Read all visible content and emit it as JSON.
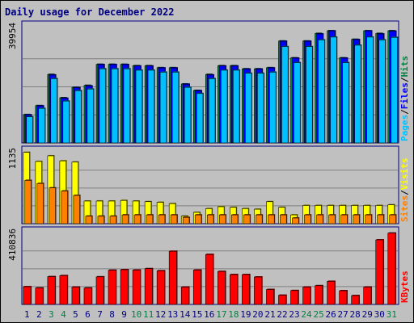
{
  "chart_data": {
    "type": "bar",
    "title": "Daily usage for December 2022",
    "days": [
      "1",
      "2",
      "3",
      "4",
      "5",
      "6",
      "7",
      "8",
      "9",
      "10",
      "11",
      "12",
      "13",
      "14",
      "15",
      "16",
      "17",
      "18",
      "19",
      "20",
      "21",
      "22",
      "23",
      "24",
      "25",
      "26",
      "27",
      "28",
      "29",
      "30",
      "31"
    ],
    "weekend_days": [
      3,
      4,
      10,
      11,
      17,
      18,
      24,
      25,
      31
    ],
    "panels": [
      {
        "id": "hits_files_pages",
        "ymax_label": "39954",
        "ymax": 39954,
        "legend": [
          "Pages",
          "/",
          "Files",
          "/",
          "Hits"
        ],
        "legend_colors": [
          "#00c0ff",
          "#000000",
          "#0000ff",
          "#000000",
          "#008040"
        ],
        "series": [
          {
            "name": "Hits",
            "color": "#008040",
            "values": [
              10100,
              13300,
              24400,
              16100,
              19800,
              20500,
              28000,
              28000,
              28000,
              27500,
              27500,
              26800,
              26800,
              21000,
              18700,
              24400,
              27500,
              27500,
              26400,
              26400,
              26800,
              36300,
              30300,
              36300,
              39000,
              39954,
              30300,
              36900,
              39954,
              39000,
              39954
            ]
          },
          {
            "name": "Files",
            "color": "#0000ff",
            "values": [
              10000,
              13200,
              24200,
              15900,
              19700,
              20300,
              27900,
              27900,
              27900,
              27400,
              27400,
              26700,
              26700,
              20900,
              18600,
              24200,
              27400,
              27400,
              26300,
              26300,
              26700,
              36200,
              30200,
              36200,
              38800,
              39900,
              30200,
              36800,
              39900,
              38800,
              39800
            ]
          },
          {
            "name": "Pages",
            "color": "#00c0ff",
            "values": [
              9300,
              12300,
              22900,
              14900,
              18600,
              19200,
              26400,
              26400,
              26400,
              25900,
              25900,
              25200,
              25200,
              19800,
              17600,
              22900,
              25900,
              25900,
              24800,
              24800,
              25200,
              34300,
              28600,
              34300,
              36700,
              37700,
              28600,
              34800,
              37700,
              36700,
              37600
            ]
          }
        ]
      },
      {
        "id": "visits_sites",
        "ymax_label": "1135",
        "ymax": 1135,
        "legend": [
          "Sites",
          "/",
          "Visits"
        ],
        "legend_colors": [
          "#ff8000",
          "#000000",
          "#ffff00"
        ],
        "series": [
          {
            "name": "Visits",
            "color": "#ffff00",
            "values": [
              1135,
              990,
              1080,
              1000,
              980,
              360,
              360,
              360,
              370,
              360,
              350,
              340,
              320,
              120,
              180,
              240,
              270,
              260,
              240,
              230,
              350,
              260,
              140,
              290,
              290,
              290,
              290,
              290,
              290,
              290,
              300
            ]
          },
          {
            "name": "Sites",
            "color": "#ff8000",
            "values": [
              690,
              640,
              570,
              520,
              450,
              120,
              120,
              120,
              140,
              140,
              140,
              140,
              140,
              100,
              140,
              140,
              140,
              140,
              140,
              140,
              140,
              140,
              90,
              140,
              140,
              140,
              140,
              140,
              140,
              140,
              140
            ]
          }
        ]
      },
      {
        "id": "kbytes",
        "ymax_label": "410836",
        "ymax": 410836,
        "legend": [
          "KBytes"
        ],
        "legend_colors": [
          "#ff0000"
        ],
        "series": [
          {
            "name": "KBytes",
            "color": "#ff0000",
            "values": [
              102000,
              95000,
              160000,
              166000,
              100000,
              95000,
              159000,
              197000,
              200000,
              198000,
              206000,
              194000,
              306000,
              100000,
              198000,
              288000,
              190000,
              172000,
              172000,
              158000,
              86000,
              53000,
              80000,
              100000,
              108000,
              133000,
              79000,
              51000,
              100000,
              372000,
              410836
            ]
          }
        ]
      }
    ]
  },
  "colors": {
    "background": "#c0c0c0",
    "frame_border": "#000080",
    "weekday_label": "#000080",
    "weekend_label": "#008040",
    "gridline": "#808080"
  }
}
